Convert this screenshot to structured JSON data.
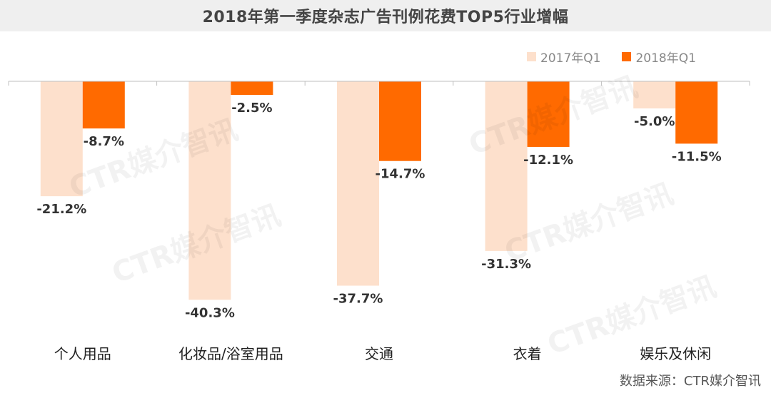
{
  "chart_data": {
    "type": "bar",
    "title": "2018年第一季度杂志广告刊例花费TOP5行业增幅",
    "categories": [
      "个人用品",
      "化妆品/浴室用品",
      "交通",
      "衣着",
      "娱乐及休闲"
    ],
    "series": [
      {
        "name": "2017年Q1",
        "values": [
          -21.2,
          -40.3,
          -37.7,
          -31.3,
          -5.0
        ],
        "labels": [
          "-21.2%",
          "-40.3%",
          "-37.7%",
          "-31.3%",
          "-5.0%"
        ],
        "color": "#fde0cc"
      },
      {
        "name": "2018年Q1",
        "values": [
          -8.7,
          -2.5,
          -14.7,
          -12.1,
          -11.5
        ],
        "labels": [
          "-8.7%",
          "-2.5%",
          "-14.7%",
          "-12.1%",
          "-11.5%"
        ],
        "color": "#ff6a00"
      }
    ],
    "ylim": [
      -45,
      0
    ],
    "grid": false,
    "legend": "top-right"
  },
  "watermark": "CTR媒介智讯",
  "source": "数据来源：CTR媒介智讯"
}
